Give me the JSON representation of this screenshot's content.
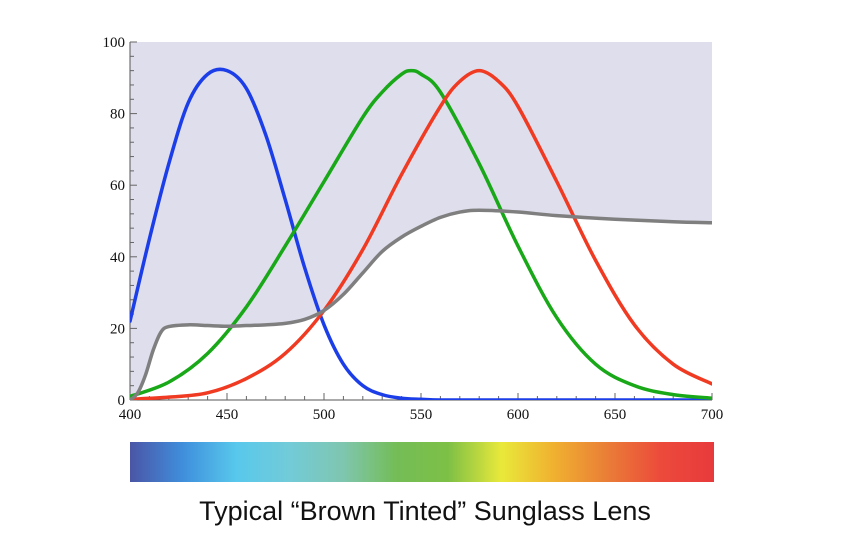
{
  "chart_data": {
    "type": "line",
    "title": "Typical “Brown Tinted” Sunglass Lens",
    "xlabel": "",
    "ylabel": "",
    "xlim": [
      400,
      700
    ],
    "ylim": [
      0,
      100
    ],
    "x_ticks": [
      400,
      450,
      500,
      550,
      600,
      650,
      700
    ],
    "y_ticks": [
      0,
      20,
      40,
      60,
      80,
      100
    ],
    "grid": false,
    "shaded_region": "above-transmission-curve",
    "colors": {
      "shade": "#dedeec",
      "blue": "#1c3ee8",
      "green": "#18a818",
      "red": "#f03a22",
      "transmission": "#7f7f7f"
    },
    "spectrum_colors": [
      "#4b55a6",
      "#3f8fdc",
      "#58c8ec",
      "#72cbd8",
      "#7fc6b0",
      "#74bd57",
      "#7dc046",
      "#e9e93a",
      "#f0b030",
      "#ea7d37",
      "#ec4a3b",
      "#e83a3c"
    ],
    "series": [
      {
        "x": [
          400,
          410,
          420,
          430,
          440,
          450,
          460,
          470,
          480,
          490,
          500,
          510,
          520,
          530,
          540,
          550,
          560,
          580,
          600,
          700
        ],
        "values": [
          22,
          45,
          66,
          83,
          91,
          92,
          87,
          74,
          56,
          37,
          21,
          10,
          4,
          1.5,
          0.5,
          0.2,
          0,
          0,
          0,
          0
        ]
      },
      {
        "x": [
          400,
          420,
          440,
          460,
          480,
          500,
          520,
          530,
          540,
          545,
          550,
          560,
          580,
          600,
          620,
          640,
          660,
          680,
          700
        ],
        "values": [
          1,
          5,
          13,
          26,
          43,
          61,
          79,
          86,
          91,
          92,
          91,
          86,
          66,
          43,
          23,
          10,
          4,
          1.5,
          0.5
        ]
      },
      {
        "x": [
          400,
          420,
          440,
          460,
          480,
          500,
          520,
          540,
          560,
          570,
          580,
          590,
          600,
          620,
          640,
          660,
          680,
          700
        ],
        "values": [
          0.2,
          0.8,
          2,
          6,
          13,
          25,
          42,
          63,
          82,
          89,
          92,
          89,
          82,
          61,
          39,
          21,
          10,
          4.5
        ]
      },
      {
        "x": [
          400,
          404,
          408,
          412,
          416,
          420,
          430,
          440,
          450,
          460,
          470,
          480,
          490,
          500,
          510,
          520,
          530,
          540,
          550,
          560,
          570,
          580,
          600,
          620,
          650,
          680,
          700
        ],
        "values": [
          0,
          2,
          7,
          14,
          19,
          20.5,
          21,
          20.8,
          20.6,
          20.8,
          21,
          21.4,
          22.5,
          25,
          29.5,
          35.5,
          41.5,
          45.5,
          48.5,
          51,
          52.5,
          53,
          52.5,
          51.5,
          50.5,
          49.8,
          49.5
        ]
      }
    ]
  }
}
